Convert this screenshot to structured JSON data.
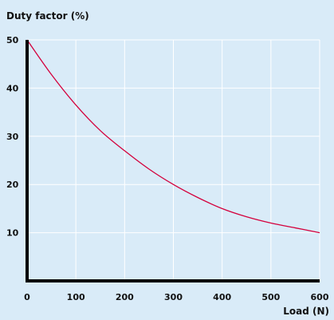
{
  "chart_data": {
    "type": "line",
    "title": "",
    "ylabel": "Duty factor (%)",
    "xlabel": "Load (N)",
    "xlim": [
      0,
      600
    ],
    "ylim": [
      0,
      50
    ],
    "x_ticks": [
      "0",
      "100",
      "200",
      "300",
      "400",
      "500",
      "600"
    ],
    "y_ticks": [
      "10",
      "20",
      "30",
      "40",
      "50"
    ],
    "grid": true,
    "series": [
      {
        "x": [
          0,
          50,
          100,
          150,
          200,
          250,
          300,
          350,
          400,
          450,
          500,
          550,
          600
        ],
        "values": [
          50,
          42.8,
          36.5,
          31.2,
          27.0,
          23.2,
          20.0,
          17.3,
          15.0,
          13.3,
          12.0,
          11.0,
          10.0
        ]
      }
    ]
  },
  "colors": {
    "background": "#d9ebf8",
    "grid": "#ffffff",
    "axis": "#000000",
    "series": "#d4003c"
  }
}
